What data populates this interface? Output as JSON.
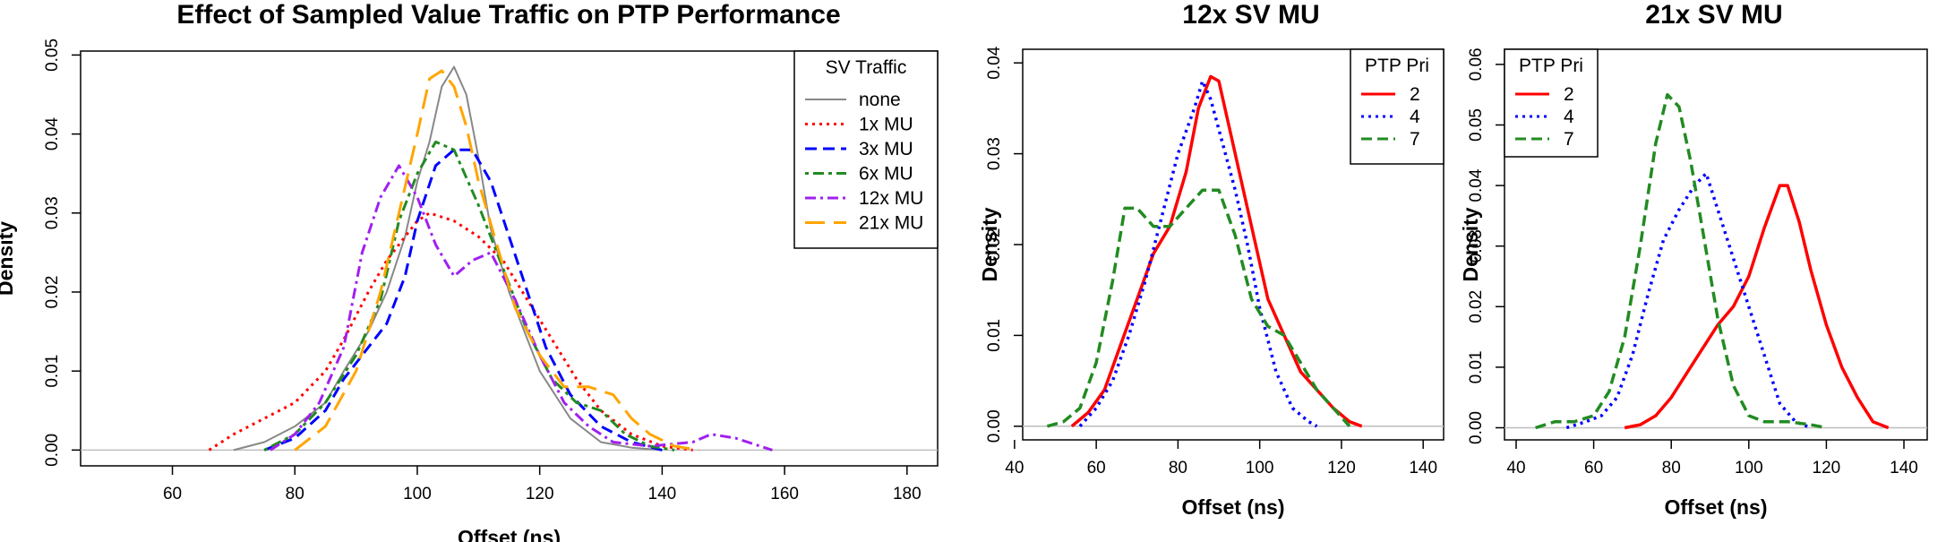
{
  "chart_data": [
    {
      "type": "line",
      "title": "Effect of Sampled Value Traffic on PTP Performance",
      "xlabel": "Offset (ns)",
      "ylabel": "Density",
      "xlim": [
        45,
        185
      ],
      "ylim": [
        -0.002,
        0.0505
      ],
      "xticks": [
        "60",
        "80",
        "100",
        "120",
        "140",
        "160",
        "180"
      ],
      "yticks": [
        "0.00",
        "0.01",
        "0.02",
        "0.03",
        "0.04",
        "0.05"
      ],
      "legend_title": "SV Traffic",
      "legend_position": "top-right",
      "baseline": 0,
      "series": [
        {
          "name": "none",
          "color": "#888888",
          "dash": "solid",
          "points": [
            [
              70,
              0
            ],
            [
              75,
              0.001
            ],
            [
              80,
              0.003
            ],
            [
              85,
              0.006
            ],
            [
              88,
              0.01
            ],
            [
              92,
              0.015
            ],
            [
              95,
              0.02
            ],
            [
              98,
              0.027
            ],
            [
              100,
              0.034
            ],
            [
              102,
              0.039
            ],
            [
              104,
              0.046
            ],
            [
              106,
              0.0485
            ],
            [
              108,
              0.045
            ],
            [
              110,
              0.037
            ],
            [
              112,
              0.028
            ],
            [
              115,
              0.02
            ],
            [
              118,
              0.014
            ],
            [
              120,
              0.01
            ],
            [
              125,
              0.004
            ],
            [
              130,
              0.001
            ],
            [
              135,
              0.0003
            ],
            [
              140,
              0
            ]
          ]
        },
        {
          "name": "1x MU",
          "color": "#ff0000",
          "dash": "3,5",
          "points": [
            [
              66,
              0
            ],
            [
              70,
              0.002
            ],
            [
              75,
              0.004
            ],
            [
              80,
              0.006
            ],
            [
              85,
              0.01
            ],
            [
              88,
              0.014
            ],
            [
              92,
              0.02
            ],
            [
              95,
              0.024
            ],
            [
              98,
              0.027
            ],
            [
              100,
              0.029
            ],
            [
              102,
              0.03
            ],
            [
              106,
              0.029
            ],
            [
              110,
              0.027
            ],
            [
              114,
              0.024
            ],
            [
              118,
              0.019
            ],
            [
              122,
              0.014
            ],
            [
              126,
              0.009
            ],
            [
              130,
              0.005
            ],
            [
              135,
              0.002
            ],
            [
              140,
              0.0005
            ],
            [
              145,
              0
            ]
          ]
        },
        {
          "name": "3x MU",
          "color": "#0000ff",
          "dash": "13,7",
          "points": [
            [
              75,
              0
            ],
            [
              80,
              0.0015
            ],
            [
              85,
              0.005
            ],
            [
              88,
              0.009
            ],
            [
              92,
              0.013
            ],
            [
              95,
              0.016
            ],
            [
              98,
              0.022
            ],
            [
              100,
              0.029
            ],
            [
              103,
              0.036
            ],
            [
              106,
              0.038
            ],
            [
              109,
              0.038
            ],
            [
              112,
              0.034
            ],
            [
              115,
              0.027
            ],
            [
              118,
              0.02
            ],
            [
              121,
              0.013
            ],
            [
              125,
              0.007
            ],
            [
              130,
              0.003
            ],
            [
              135,
              0.001
            ],
            [
              140,
              0
            ]
          ]
        },
        {
          "name": "6x MU",
          "color": "#228b22",
          "dash": "4,5,12,5",
          "points": [
            [
              75,
              0
            ],
            [
              80,
              0.002
            ],
            [
              85,
              0.006
            ],
            [
              90,
              0.012
            ],
            [
              94,
              0.019
            ],
            [
              97,
              0.029
            ],
            [
              100,
              0.035
            ],
            [
              103,
              0.039
            ],
            [
              106,
              0.038
            ],
            [
              110,
              0.031
            ],
            [
              114,
              0.023
            ],
            [
              118,
              0.015
            ],
            [
              122,
              0.009
            ],
            [
              126,
              0.006
            ],
            [
              130,
              0.005
            ],
            [
              134,
              0.002
            ],
            [
              138,
              0.0005
            ],
            [
              142,
              0
            ]
          ]
        },
        {
          "name": "12x MU",
          "color": "#a020f0",
          "dash": "12,5,3,5",
          "points": [
            [
              76,
              0
            ],
            [
              80,
              0.002
            ],
            [
              84,
              0.006
            ],
            [
              88,
              0.013
            ],
            [
              91,
              0.025
            ],
            [
              94,
              0.032
            ],
            [
              97,
              0.036
            ],
            [
              100,
              0.032
            ],
            [
              103,
              0.026
            ],
            [
              106,
              0.022
            ],
            [
              109,
              0.024
            ],
            [
              112,
              0.025
            ],
            [
              116,
              0.019
            ],
            [
              120,
              0.012
            ],
            [
              124,
              0.006
            ],
            [
              128,
              0.003
            ],
            [
              132,
              0.001
            ],
            [
              138,
              0.0005
            ],
            [
              145,
              0.001
            ],
            [
              148,
              0.002
            ],
            [
              152,
              0.0015
            ],
            [
              156,
              0.0005
            ],
            [
              158,
              0
            ]
          ]
        },
        {
          "name": "21x MU",
          "color": "#ffa500",
          "dash": "22,10",
          "points": [
            [
              80,
              0
            ],
            [
              85,
              0.003
            ],
            [
              90,
              0.01
            ],
            [
              94,
              0.02
            ],
            [
              97,
              0.03
            ],
            [
              100,
              0.04
            ],
            [
              102,
              0.047
            ],
            [
              104,
              0.048
            ],
            [
              106,
              0.046
            ],
            [
              108,
              0.041
            ],
            [
              110,
              0.034
            ],
            [
              113,
              0.026
            ],
            [
              116,
              0.018
            ],
            [
              120,
              0.012
            ],
            [
              124,
              0.008
            ],
            [
              128,
              0.008
            ],
            [
              132,
              0.007
            ],
            [
              135,
              0.004
            ],
            [
              138,
              0.002
            ],
            [
              142,
              0.0005
            ],
            [
              146,
              0
            ]
          ]
        }
      ]
    },
    {
      "type": "line",
      "title": "12x SV MU",
      "xlabel": "Offset (ns)",
      "ylabel": "Density",
      "xlim": [
        42,
        145
      ],
      "ylim": [
        -0.0015,
        0.0415
      ],
      "xticks": [
        "40",
        "60",
        "80",
        "100",
        "120",
        "140"
      ],
      "yticks": [
        "0.00",
        "0.01",
        "0.02",
        "0.03",
        "0.04"
      ],
      "legend_title": "PTP Pri",
      "legend_position": "top-right",
      "baseline": 0,
      "series": [
        {
          "name": "2",
          "color": "#ff0000",
          "dash": "solid",
          "points": [
            [
              54,
              0
            ],
            [
              58,
              0.0015
            ],
            [
              62,
              0.004
            ],
            [
              66,
              0.009
            ],
            [
              70,
              0.014
            ],
            [
              74,
              0.019
            ],
            [
              78,
              0.022
            ],
            [
              82,
              0.028
            ],
            [
              85,
              0.035
            ],
            [
              88,
              0.0385
            ],
            [
              90,
              0.038
            ],
            [
              93,
              0.032
            ],
            [
              96,
              0.026
            ],
            [
              99,
              0.02
            ],
            [
              102,
              0.014
            ],
            [
              106,
              0.01
            ],
            [
              110,
              0.006
            ],
            [
              114,
              0.004
            ],
            [
              118,
              0.002
            ],
            [
              122,
              0.0005
            ],
            [
              125,
              0
            ]
          ]
        },
        {
          "name": "4",
          "color": "#0000ff",
          "dash": "3,5",
          "points": [
            [
              56,
              0
            ],
            [
              60,
              0.002
            ],
            [
              64,
              0.005
            ],
            [
              68,
              0.01
            ],
            [
              72,
              0.016
            ],
            [
              76,
              0.023
            ],
            [
              80,
              0.03
            ],
            [
              84,
              0.035
            ],
            [
              86,
              0.038
            ],
            [
              88,
              0.036
            ],
            [
              91,
              0.031
            ],
            [
              94,
              0.026
            ],
            [
              97,
              0.02
            ],
            [
              100,
              0.013
            ],
            [
              104,
              0.006
            ],
            [
              108,
              0.002
            ],
            [
              112,
              0.0005
            ],
            [
              114,
              0
            ]
          ]
        },
        {
          "name": "7",
          "color": "#228b22",
          "dash": "12,6",
          "points": [
            [
              48,
              0
            ],
            [
              52,
              0.0005
            ],
            [
              56,
              0.002
            ],
            [
              60,
              0.007
            ],
            [
              64,
              0.016
            ],
            [
              67,
              0.024
            ],
            [
              70,
              0.024
            ],
            [
              74,
              0.022
            ],
            [
              78,
              0.022
            ],
            [
              82,
              0.024
            ],
            [
              86,
              0.026
            ],
            [
              90,
              0.026
            ],
            [
              94,
              0.021
            ],
            [
              98,
              0.014
            ],
            [
              102,
              0.011
            ],
            [
              106,
              0.01
            ],
            [
              110,
              0.007
            ],
            [
              114,
              0.004
            ],
            [
              118,
              0.002
            ],
            [
              122,
              0
            ]
          ]
        }
      ]
    },
    {
      "type": "line",
      "title": "21x SV MU",
      "xlabel": "Offset (ns)",
      "ylabel": "Density",
      "xlim": [
        37,
        146
      ],
      "ylim": [
        -0.002,
        0.0625
      ],
      "xticks": [
        "40",
        "60",
        "80",
        "100",
        "120",
        "140"
      ],
      "yticks": [
        "0.00",
        "0.01",
        "0.02",
        "0.03",
        "0.04",
        "0.05",
        "0.06"
      ],
      "legend_title": "PTP Pri",
      "legend_position": "top-left",
      "baseline": 0,
      "series": [
        {
          "name": "2",
          "color": "#ff0000",
          "dash": "solid",
          "points": [
            [
              68,
              0
            ],
            [
              72,
              0.0005
            ],
            [
              76,
              0.002
            ],
            [
              80,
              0.005
            ],
            [
              84,
              0.009
            ],
            [
              88,
              0.013
            ],
            [
              92,
              0.017
            ],
            [
              96,
              0.02
            ],
            [
              100,
              0.025
            ],
            [
              104,
              0.033
            ],
            [
              108,
              0.04
            ],
            [
              110,
              0.04
            ],
            [
              113,
              0.034
            ],
            [
              116,
              0.026
            ],
            [
              120,
              0.017
            ],
            [
              124,
              0.01
            ],
            [
              128,
              0.005
            ],
            [
              132,
              0.001
            ],
            [
              136,
              0
            ]
          ]
        },
        {
          "name": "4",
          "color": "#0000ff",
          "dash": "3,5",
          "points": [
            [
              53,
              0
            ],
            [
              58,
              0.001
            ],
            [
              62,
              0.002
            ],
            [
              66,
              0.005
            ],
            [
              70,
              0.012
            ],
            [
              74,
              0.022
            ],
            [
              78,
              0.031
            ],
            [
              82,
              0.036
            ],
            [
              86,
              0.04
            ],
            [
              89,
              0.042
            ],
            [
              92,
              0.036
            ],
            [
              96,
              0.028
            ],
            [
              100,
              0.02
            ],
            [
              104,
              0.012
            ],
            [
              108,
              0.004
            ],
            [
              112,
              0.001
            ],
            [
              116,
              0
            ]
          ]
        },
        {
          "name": "7",
          "color": "#228b22",
          "dash": "12,6",
          "points": [
            [
              45,
              0
            ],
            [
              50,
              0.001
            ],
            [
              55,
              0.001
            ],
            [
              60,
              0.002
            ],
            [
              64,
              0.006
            ],
            [
              68,
              0.015
            ],
            [
              72,
              0.03
            ],
            [
              76,
              0.047
            ],
            [
              79,
              0.055
            ],
            [
              82,
              0.053
            ],
            [
              85,
              0.044
            ],
            [
              88,
              0.033
            ],
            [
              92,
              0.018
            ],
            [
              96,
              0.007
            ],
            [
              100,
              0.002
            ],
            [
              104,
              0.001
            ],
            [
              110,
              0.001
            ],
            [
              116,
              0.0005
            ],
            [
              120,
              0
            ]
          ]
        }
      ]
    }
  ]
}
